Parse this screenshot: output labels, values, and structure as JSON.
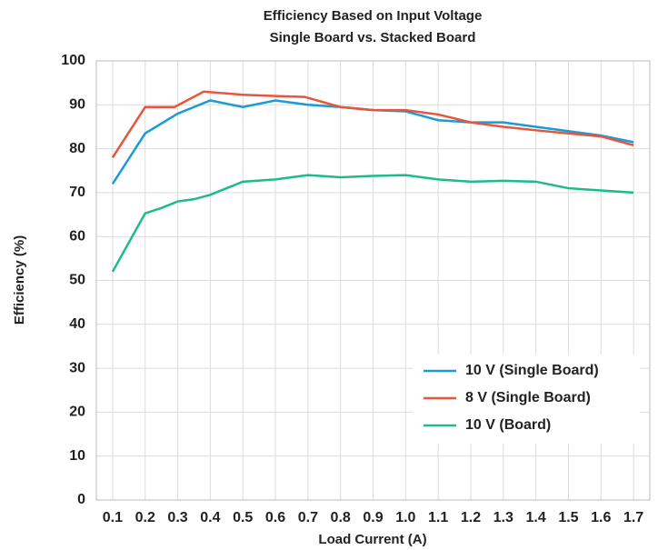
{
  "chart_data": {
    "type": "line",
    "title": "Efficiency Based on Input Voltage",
    "subtitle": "Single Board vs. Stacked Board",
    "x_label": "Load Current (A)",
    "y_label": "Efficiency (%)",
    "xlim": [
      0.05,
      1.75
    ],
    "ylim": [
      0,
      100
    ],
    "xticks": [
      0.1,
      0.2,
      0.3,
      0.4,
      0.5,
      0.6,
      0.7,
      0.8,
      0.9,
      {
        "value": 1,
        "label": "1.0"
      },
      1.1,
      1.2,
      1.3,
      1.4,
      1.5,
      1.6,
      1.7
    ],
    "yticks": [
      0,
      10,
      20,
      30,
      40,
      50,
      60,
      70,
      80,
      90,
      100
    ],
    "grid": true,
    "legend": "lower right",
    "series": [
      {
        "name": "10 V (Single Board)",
        "color": "#1a9bd7",
        "x": [
          0.1,
          0.2,
          0.3,
          0.4,
          0.5,
          0.6,
          0.7,
          0.8,
          0.9,
          1.0,
          1.1,
          1.2,
          1.3,
          1.4,
          1.5,
          1.6,
          1.7
        ],
        "values": [
          72,
          83.5,
          88,
          91,
          89.5,
          91,
          90,
          89.5,
          88.8,
          88.5,
          86.5,
          86,
          86,
          85,
          84,
          83,
          81.5
        ]
      },
      {
        "name": "8 V (Single Board)",
        "color": "#e8553e",
        "x": [
          0.1,
          0.2,
          0.29,
          0.38,
          0.5,
          0.6,
          0.69,
          0.8,
          0.9,
          1.0,
          1.1,
          1.2,
          1.3,
          1.4,
          1.5,
          1.6,
          1.7
        ],
        "values": [
          78,
          89.5,
          89.5,
          93,
          92.3,
          92,
          91.8,
          89.5,
          88.8,
          88.8,
          87.8,
          86,
          85,
          84.2,
          83.5,
          82.8,
          80.8
        ]
      },
      {
        "name": "10 V (Board)",
        "color": "#1dba8c",
        "x": [
          0.1,
          0.2,
          0.25,
          0.3,
          0.35,
          0.4,
          0.5,
          0.6,
          0.7,
          0.8,
          0.9,
          1.0,
          1.1,
          1.2,
          1.3,
          1.4,
          1.5,
          1.6,
          1.7
        ],
        "values": [
          52,
          65.3,
          66.5,
          68,
          68.5,
          69.5,
          72.5,
          73,
          74,
          73.5,
          73.8,
          74,
          73,
          72.5,
          72.7,
          72.5,
          71,
          70.5,
          70
        ]
      }
    ]
  }
}
